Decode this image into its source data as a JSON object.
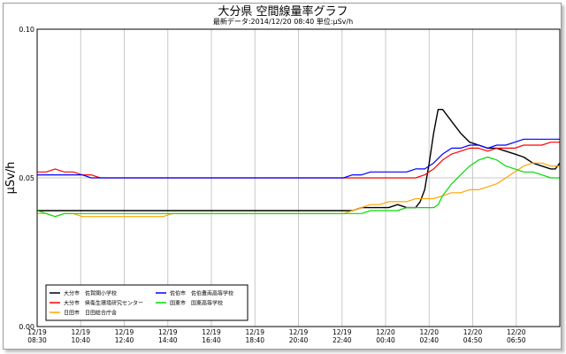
{
  "title": "大分県 空間線量率グラフ",
  "subtitle": "最新データ:2014/12/20 08:40 単位:μSv/h",
  "chart_data": {
    "type": "line",
    "ylabel": "μSv/h",
    "ylim": [
      0.0,
      0.1
    ],
    "yticks": [
      "0.00",
      "0.05",
      "0.10"
    ],
    "xticks": [
      [
        "12/19",
        "08:30"
      ],
      [
        "12/19",
        "10:40"
      ],
      [
        "12/19",
        "12:40"
      ],
      [
        "12/19",
        "14:40"
      ],
      [
        "12/19",
        "16:40"
      ],
      [
        "12/19",
        "18:40"
      ],
      [
        "12/19",
        "20:40"
      ],
      [
        "12/19",
        "22:40"
      ],
      [
        "12/20",
        "00:40"
      ],
      [
        "12/20",
        "02:40"
      ],
      [
        "12/20",
        "04:50"
      ],
      [
        "12/20",
        "06:50"
      ]
    ],
    "grid": true,
    "legend_position": "bottom-left",
    "series": [
      {
        "name": "大分市　佐賀関小学校",
        "color": "#000000",
        "points": [
          [
            0,
            0.039
          ],
          [
            10,
            0.039
          ],
          [
            20,
            0.039
          ],
          [
            30,
            0.039
          ],
          [
            40,
            0.039
          ],
          [
            50,
            0.039
          ],
          [
            60,
            0.039
          ],
          [
            70,
            0.039
          ],
          [
            80,
            0.039
          ],
          [
            90,
            0.039
          ],
          [
            100,
            0.039
          ],
          [
            110,
            0.039
          ],
          [
            120,
            0.039
          ],
          [
            130,
            0.039
          ],
          [
            140,
            0.039
          ],
          [
            150,
            0.039
          ],
          [
            160,
            0.039
          ],
          [
            170,
            0.039
          ],
          [
            180,
            0.039
          ],
          [
            190,
            0.039
          ],
          [
            200,
            0.039
          ],
          [
            210,
            0.039
          ],
          [
            220,
            0.039
          ],
          [
            230,
            0.039
          ],
          [
            240,
            0.039
          ],
          [
            250,
            0.039
          ],
          [
            260,
            0.039
          ],
          [
            270,
            0.039
          ],
          [
            280,
            0.039
          ],
          [
            290,
            0.039
          ],
          [
            300,
            0.039
          ],
          [
            310,
            0.039
          ],
          [
            320,
            0.039
          ],
          [
            330,
            0.039
          ],
          [
            340,
            0.039
          ],
          [
            350,
            0.039
          ],
          [
            360,
            0.04
          ],
          [
            370,
            0.04
          ],
          [
            380,
            0.04
          ],
          [
            390,
            0.04
          ],
          [
            400,
            0.041
          ],
          [
            410,
            0.04
          ],
          [
            420,
            0.04
          ],
          [
            425,
            0.042
          ],
          [
            430,
            0.046
          ],
          [
            435,
            0.055
          ],
          [
            440,
            0.065
          ],
          [
            445,
            0.073
          ],
          [
            450,
            0.073
          ],
          [
            455,
            0.071
          ],
          [
            460,
            0.069
          ],
          [
            470,
            0.065
          ],
          [
            480,
            0.062
          ],
          [
            490,
            0.061
          ],
          [
            500,
            0.06
          ],
          [
            510,
            0.06
          ],
          [
            520,
            0.059
          ],
          [
            530,
            0.058
          ],
          [
            540,
            0.057
          ],
          [
            550,
            0.055
          ],
          [
            560,
            0.054
          ],
          [
            570,
            0.053
          ],
          [
            575,
            0.053
          ],
          [
            580,
            0.055
          ]
        ]
      },
      {
        "name": "大分市　県衛生環境研究センター",
        "color": "#ff0000",
        "points": [
          [
            0,
            0.052
          ],
          [
            10,
            0.052
          ],
          [
            20,
            0.053
          ],
          [
            30,
            0.052
          ],
          [
            40,
            0.052
          ],
          [
            50,
            0.051
          ],
          [
            60,
            0.051
          ],
          [
            70,
            0.05
          ],
          [
            80,
            0.05
          ],
          [
            90,
            0.05
          ],
          [
            100,
            0.05
          ],
          [
            110,
            0.05
          ],
          [
            120,
            0.05
          ],
          [
            130,
            0.05
          ],
          [
            140,
            0.05
          ],
          [
            150,
            0.05
          ],
          [
            160,
            0.05
          ],
          [
            170,
            0.05
          ],
          [
            180,
            0.05
          ],
          [
            190,
            0.05
          ],
          [
            200,
            0.05
          ],
          [
            210,
            0.05
          ],
          [
            220,
            0.05
          ],
          [
            230,
            0.05
          ],
          [
            240,
            0.05
          ],
          [
            250,
            0.05
          ],
          [
            260,
            0.05
          ],
          [
            270,
            0.05
          ],
          [
            280,
            0.05
          ],
          [
            290,
            0.05
          ],
          [
            300,
            0.05
          ],
          [
            310,
            0.05
          ],
          [
            320,
            0.05
          ],
          [
            330,
            0.05
          ],
          [
            340,
            0.05
          ],
          [
            350,
            0.05
          ],
          [
            360,
            0.05
          ],
          [
            370,
            0.05
          ],
          [
            380,
            0.05
          ],
          [
            390,
            0.05
          ],
          [
            400,
            0.05
          ],
          [
            410,
            0.05
          ],
          [
            420,
            0.05
          ],
          [
            430,
            0.051
          ],
          [
            440,
            0.053
          ],
          [
            450,
            0.056
          ],
          [
            460,
            0.058
          ],
          [
            470,
            0.059
          ],
          [
            480,
            0.06
          ],
          [
            490,
            0.06
          ],
          [
            500,
            0.059
          ],
          [
            510,
            0.06
          ],
          [
            520,
            0.06
          ],
          [
            530,
            0.06
          ],
          [
            540,
            0.061
          ],
          [
            550,
            0.061
          ],
          [
            560,
            0.061
          ],
          [
            570,
            0.062
          ],
          [
            580,
            0.062
          ]
        ]
      },
      {
        "name": "日田市　日田総合庁舎",
        "color": "#ffa500",
        "points": [
          [
            0,
            0.038
          ],
          [
            10,
            0.038
          ],
          [
            20,
            0.037
          ],
          [
            30,
            0.038
          ],
          [
            40,
            0.038
          ],
          [
            50,
            0.037
          ],
          [
            60,
            0.037
          ],
          [
            70,
            0.037
          ],
          [
            80,
            0.037
          ],
          [
            90,
            0.037
          ],
          [
            100,
            0.037
          ],
          [
            110,
            0.037
          ],
          [
            120,
            0.037
          ],
          [
            130,
            0.037
          ],
          [
            140,
            0.037
          ],
          [
            150,
            0.038
          ],
          [
            160,
            0.038
          ],
          [
            170,
            0.038
          ],
          [
            180,
            0.038
          ],
          [
            190,
            0.038
          ],
          [
            200,
            0.038
          ],
          [
            210,
            0.038
          ],
          [
            220,
            0.038
          ],
          [
            230,
            0.038
          ],
          [
            240,
            0.038
          ],
          [
            250,
            0.038
          ],
          [
            260,
            0.038
          ],
          [
            270,
            0.038
          ],
          [
            280,
            0.038
          ],
          [
            290,
            0.038
          ],
          [
            300,
            0.038
          ],
          [
            310,
            0.038
          ],
          [
            320,
            0.038
          ],
          [
            330,
            0.038
          ],
          [
            340,
            0.038
          ],
          [
            350,
            0.039
          ],
          [
            360,
            0.04
          ],
          [
            370,
            0.041
          ],
          [
            380,
            0.041
          ],
          [
            390,
            0.042
          ],
          [
            400,
            0.042
          ],
          [
            410,
            0.042
          ],
          [
            420,
            0.043
          ],
          [
            430,
            0.043
          ],
          [
            440,
            0.043
          ],
          [
            450,
            0.044
          ],
          [
            460,
            0.045
          ],
          [
            470,
            0.045
          ],
          [
            480,
            0.046
          ],
          [
            490,
            0.046
          ],
          [
            500,
            0.047
          ],
          [
            510,
            0.048
          ],
          [
            520,
            0.05
          ],
          [
            530,
            0.052
          ],
          [
            540,
            0.054
          ],
          [
            550,
            0.055
          ],
          [
            560,
            0.055
          ],
          [
            570,
            0.054
          ],
          [
            580,
            0.054
          ]
        ]
      },
      {
        "name": "佐伯市　佐伯豊南高等学校",
        "color": "#0000ff",
        "points": [
          [
            0,
            0.051
          ],
          [
            10,
            0.051
          ],
          [
            20,
            0.051
          ],
          [
            30,
            0.051
          ],
          [
            40,
            0.051
          ],
          [
            50,
            0.051
          ],
          [
            60,
            0.05
          ],
          [
            70,
            0.05
          ],
          [
            80,
            0.05
          ],
          [
            90,
            0.05
          ],
          [
            100,
            0.05
          ],
          [
            110,
            0.05
          ],
          [
            120,
            0.05
          ],
          [
            130,
            0.05
          ],
          [
            140,
            0.05
          ],
          [
            150,
            0.05
          ],
          [
            160,
            0.05
          ],
          [
            170,
            0.05
          ],
          [
            180,
            0.05
          ],
          [
            190,
            0.05
          ],
          [
            200,
            0.05
          ],
          [
            210,
            0.05
          ],
          [
            220,
            0.05
          ],
          [
            230,
            0.05
          ],
          [
            240,
            0.05
          ],
          [
            250,
            0.05
          ],
          [
            260,
            0.05
          ],
          [
            270,
            0.05
          ],
          [
            280,
            0.05
          ],
          [
            290,
            0.05
          ],
          [
            300,
            0.05
          ],
          [
            310,
            0.05
          ],
          [
            320,
            0.05
          ],
          [
            330,
            0.05
          ],
          [
            340,
            0.05
          ],
          [
            350,
            0.051
          ],
          [
            360,
            0.051
          ],
          [
            370,
            0.052
          ],
          [
            380,
            0.052
          ],
          [
            390,
            0.052
          ],
          [
            400,
            0.052
          ],
          [
            410,
            0.052
          ],
          [
            420,
            0.053
          ],
          [
            430,
            0.053
          ],
          [
            440,
            0.055
          ],
          [
            450,
            0.058
          ],
          [
            460,
            0.06
          ],
          [
            470,
            0.06
          ],
          [
            480,
            0.061
          ],
          [
            490,
            0.061
          ],
          [
            500,
            0.06
          ],
          [
            510,
            0.061
          ],
          [
            520,
            0.061
          ],
          [
            530,
            0.062
          ],
          [
            540,
            0.063
          ],
          [
            550,
            0.063
          ],
          [
            560,
            0.063
          ],
          [
            570,
            0.063
          ],
          [
            580,
            0.063
          ]
        ]
      },
      {
        "name": "国東市　国東高等学校",
        "color": "#00dd00",
        "points": [
          [
            0,
            0.039
          ],
          [
            10,
            0.038
          ],
          [
            20,
            0.037
          ],
          [
            30,
            0.038
          ],
          [
            40,
            0.038
          ],
          [
            50,
            0.038
          ],
          [
            60,
            0.038
          ],
          [
            70,
            0.038
          ],
          [
            80,
            0.038
          ],
          [
            90,
            0.038
          ],
          [
            100,
            0.038
          ],
          [
            110,
            0.038
          ],
          [
            120,
            0.038
          ],
          [
            130,
            0.038
          ],
          [
            140,
            0.038
          ],
          [
            150,
            0.038
          ],
          [
            160,
            0.038
          ],
          [
            170,
            0.038
          ],
          [
            180,
            0.038
          ],
          [
            190,
            0.038
          ],
          [
            200,
            0.038
          ],
          [
            210,
            0.038
          ],
          [
            220,
            0.038
          ],
          [
            230,
            0.038
          ],
          [
            240,
            0.038
          ],
          [
            250,
            0.038
          ],
          [
            260,
            0.038
          ],
          [
            270,
            0.038
          ],
          [
            280,
            0.038
          ],
          [
            290,
            0.038
          ],
          [
            300,
            0.038
          ],
          [
            310,
            0.038
          ],
          [
            320,
            0.038
          ],
          [
            330,
            0.038
          ],
          [
            340,
            0.038
          ],
          [
            350,
            0.038
          ],
          [
            360,
            0.038
          ],
          [
            370,
            0.039
          ],
          [
            380,
            0.039
          ],
          [
            390,
            0.039
          ],
          [
            400,
            0.039
          ],
          [
            410,
            0.04
          ],
          [
            420,
            0.04
          ],
          [
            430,
            0.04
          ],
          [
            440,
            0.04
          ],
          [
            445,
            0.041
          ],
          [
            450,
            0.044
          ],
          [
            460,
            0.048
          ],
          [
            470,
            0.051
          ],
          [
            480,
            0.054
          ],
          [
            490,
            0.056
          ],
          [
            500,
            0.057
          ],
          [
            510,
            0.056
          ],
          [
            520,
            0.054
          ],
          [
            530,
            0.053
          ],
          [
            540,
            0.052
          ],
          [
            550,
            0.052
          ],
          [
            560,
            0.051
          ],
          [
            570,
            0.05
          ],
          [
            580,
            0.05
          ]
        ]
      }
    ]
  }
}
